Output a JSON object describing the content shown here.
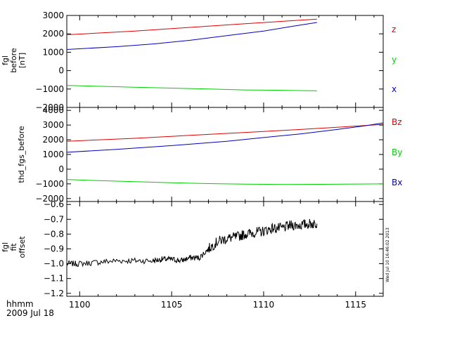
{
  "colors": {
    "red": "#e00000",
    "green": "#00d000",
    "blue": "#0000c0",
    "black": "#000000"
  },
  "chart_data": [
    {
      "type": "line",
      "ylabel": [
        "fgl",
        "before",
        "[nT]"
      ],
      "ylim": [
        -2000,
        3000
      ],
      "yticks": [
        3000,
        2000,
        1000,
        0,
        -1000,
        -2000
      ],
      "xlim": [
        1099.3,
        1116.5
      ],
      "legend_position": "right",
      "series": [
        {
          "name": "z",
          "color": "#e00000",
          "x": [
            1099.3,
            1103,
            1106,
            1109,
            1111,
            1112.9
          ],
          "y": [
            1950,
            2150,
            2350,
            2550,
            2680,
            2800
          ]
        },
        {
          "name": "y",
          "color": "#00d000",
          "x": [
            1099.3,
            1101,
            1103,
            1105,
            1107,
            1109,
            1111,
            1112.9
          ],
          "y": [
            -800,
            -850,
            -900,
            -950,
            -1000,
            -1050,
            -1070,
            -1100
          ]
        },
        {
          "name": "x",
          "color": "#0000c0",
          "x": [
            1099.3,
            1102,
            1104,
            1106,
            1108,
            1110,
            1111.5,
            1112.9
          ],
          "y": [
            1150,
            1300,
            1450,
            1650,
            1900,
            2150,
            2400,
            2620
          ]
        }
      ]
    },
    {
      "type": "line",
      "ylabel": [
        "thd_fgs_before"
      ],
      "ylim": [
        -2200,
        4200
      ],
      "yticks": [
        4000,
        3000,
        2000,
        1000,
        0,
        -1000,
        -2000
      ],
      "xlim": [
        1099.3,
        1116.5
      ],
      "legend_position": "right",
      "series": [
        {
          "name": "Bz",
          "color": "#e00000",
          "x": [
            1099.3,
            1103,
            1106,
            1109,
            1112,
            1114,
            1116.5
          ],
          "y": [
            1900,
            2100,
            2300,
            2500,
            2700,
            2850,
            3050
          ]
        },
        {
          "name": "By",
          "color": "#00d000",
          "x": [
            1099.3,
            1101,
            1103,
            1105,
            1107,
            1109,
            1111,
            1113,
            1115,
            1116.5
          ],
          "y": [
            -700,
            -780,
            -850,
            -920,
            -980,
            -1020,
            -1040,
            -1030,
            -1010,
            -1000
          ]
        },
        {
          "name": "Bx",
          "color": "#0000c0",
          "x": [
            1099.3,
            1102,
            1105,
            1108,
            1110,
            1112,
            1114,
            1115.5,
            1116.5
          ],
          "y": [
            1150,
            1350,
            1600,
            1900,
            2150,
            2400,
            2700,
            2950,
            3150
          ]
        }
      ]
    },
    {
      "type": "line",
      "ylabel": [
        "fgl",
        "fit",
        "offset"
      ],
      "ylim": [
        -1.22,
        -0.58
      ],
      "yticks": [
        -0.6,
        -0.7,
        -0.8,
        -0.9,
        -1.0,
        -1.1,
        -1.2
      ],
      "ytick_labels": [
        "−0.6",
        "−0.7",
        "−0.8",
        "−0.9",
        "−1.0",
        "−1.1",
        "−1.2"
      ],
      "xlim": [
        1099.3,
        1116.5
      ],
      "xticks": [
        1100,
        1105,
        1110,
        1115
      ],
      "series": [
        {
          "color": "#000000",
          "x": [
            1099.3,
            1100,
            1101,
            1102,
            1103,
            1104,
            1104.5,
            1105,
            1105.5,
            1106,
            1106.5,
            1107,
            1107.5,
            1108,
            1108.5,
            1109,
            1109.5,
            1110,
            1110.5,
            1111,
            1111.5,
            1112,
            1112.5,
            1112.9
          ],
          "y": [
            -1.0,
            -1.0,
            -0.99,
            -0.98,
            -0.98,
            -0.98,
            -0.97,
            -0.97,
            -0.98,
            -0.96,
            -0.96,
            -0.9,
            -0.85,
            -0.83,
            -0.82,
            -0.8,
            -0.79,
            -0.78,
            -0.76,
            -0.76,
            -0.74,
            -0.74,
            -0.73,
            -0.73
          ]
        }
      ]
    }
  ],
  "panel1_legend_labels": [
    "z",
    "y",
    "x"
  ],
  "panel2_legend_labels": [
    "Bz",
    "By",
    "Bx"
  ],
  "xaxis_label": [
    "hhmm",
    "2009 Jul 18"
  ],
  "timestamp": "Wed Jul 10 16:46:02 2013"
}
